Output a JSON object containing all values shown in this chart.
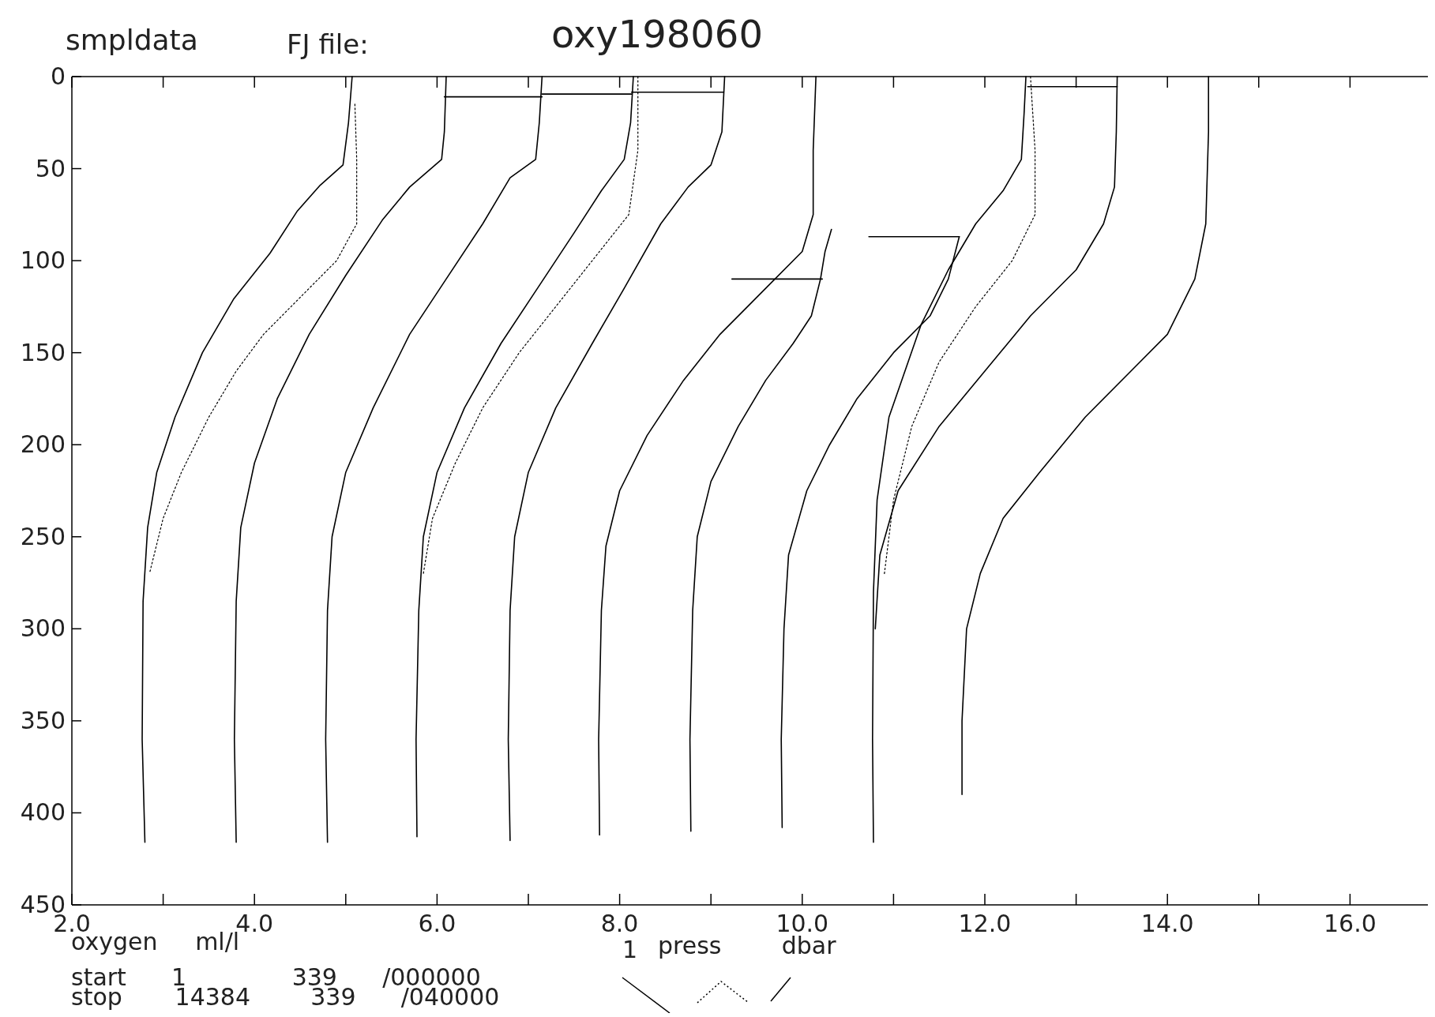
{
  "chart_data": {
    "type": "line",
    "title": "oxy198060",
    "xlabel": "oxygen     ml/l",
    "annotations": [
      "smpldata",
      "FJ file:",
      "start      1              339      /000000",
      "stop       14384        339      /040000",
      "1",
      "press        dbar"
    ],
    "xlim": [
      2,
      17
    ],
    "ylim": [
      450,
      0
    ],
    "xticks": [
      {
        "value": 2,
        "label": "2.0"
      },
      {
        "value": 3,
        "label": null
      },
      {
        "value": 4,
        "label": "4.0"
      },
      {
        "value": 5,
        "label": null
      },
      {
        "value": 6,
        "label": "6.0"
      },
      {
        "value": 7,
        "label": null
      },
      {
        "value": 8,
        "label": "8.0"
      },
      {
        "value": 9,
        "label": null
      },
      {
        "value": 10,
        "label": "10.0"
      },
      {
        "value": 11,
        "label": null
      },
      {
        "value": 12,
        "label": "12.0"
      },
      {
        "value": 13,
        "label": null
      },
      {
        "value": 14,
        "label": "14.0"
      },
      {
        "value": 15,
        "label": null
      },
      {
        "value": 16,
        "label": "16.0"
      }
    ],
    "yticks": [
      0,
      50,
      100,
      150,
      200,
      250,
      300,
      350,
      400,
      450
    ],
    "series": [
      {
        "color": "#000000",
        "line_style": "solid",
        "x": [
          5.07,
          5.03,
          4.97,
          4.72,
          4.47,
          4.17,
          3.77,
          3.43,
          3.13,
          2.93,
          2.83,
          2.78,
          2.77,
          2.8
        ],
        "values": [
          0,
          25,
          48,
          59,
          73,
          96,
          121,
          150,
          185,
          215,
          245,
          285,
          360,
          416
        ]
      },
      {
        "color": "#000000",
        "line_style": "solid",
        "x": [
          6.1,
          6.08,
          6.05,
          5.7,
          5.4,
          5.0,
          4.6,
          4.25,
          4.0,
          3.85,
          3.8,
          3.78,
          3.8
        ],
        "values": [
          0,
          30,
          45,
          60,
          78,
          108,
          140,
          175,
          210,
          245,
          285,
          360,
          416
        ]
      },
      {
        "color": "#000000",
        "line_style": "solid",
        "x": [
          7.15,
          7.12,
          7.08,
          6.8,
          6.5,
          6.1,
          5.7,
          5.3,
          5.0,
          4.85,
          4.8,
          4.78,
          4.8
        ],
        "values": [
          0,
          25,
          45,
          55,
          80,
          110,
          140,
          180,
          215,
          250,
          290,
          360,
          416
        ]
      },
      {
        "color": "#000000",
        "line_style": "solid",
        "x": [
          8.15,
          8.12,
          8.05,
          7.8,
          7.5,
          7.1,
          6.7,
          6.3,
          6.0,
          5.85,
          5.8,
          5.77,
          5.78
        ],
        "values": [
          0,
          25,
          45,
          62,
          85,
          115,
          145,
          180,
          215,
          250,
          290,
          360,
          413
        ]
      },
      {
        "color": "#000000",
        "line_style": "solid",
        "x": [
          9.15,
          9.12,
          9.0,
          8.75,
          8.45,
          8.05,
          7.7,
          7.3,
          7.0,
          6.85,
          6.8,
          6.78,
          6.8
        ],
        "values": [
          0,
          30,
          48,
          60,
          80,
          115,
          145,
          180,
          215,
          250,
          290,
          360,
          415
        ]
      },
      {
        "color": "#000000",
        "line_style": "solid",
        "x": [
          10.15,
          10.12,
          10.12,
          10.0,
          9.6,
          9.1,
          8.7,
          8.3,
          8.0,
          7.85,
          7.8,
          7.77,
          7.78
        ],
        "values": [
          0,
          40,
          75,
          95,
          115,
          140,
          165,
          195,
          225,
          255,
          290,
          360,
          412
        ]
      },
      {
        "color": "#000000",
        "line_style": "solid",
        "x": [
          10.32,
          10.25,
          10.2,
          10.1,
          9.9,
          9.6,
          9.3,
          9.0,
          8.85,
          8.8,
          8.77,
          8.78
        ],
        "values": [
          83,
          95,
          110,
          130,
          145,
          165,
          190,
          220,
          250,
          290,
          360,
          410
        ]
      },
      {
        "color": "#000000",
        "line_style": "solid",
        "x": [
          11.72,
          11.6,
          11.4,
          11.0,
          10.6,
          10.3,
          10.05,
          9.85,
          9.8,
          9.77,
          9.78
        ],
        "values": [
          87,
          110,
          130,
          150,
          175,
          200,
          225,
          260,
          300,
          360,
          408
        ]
      },
      {
        "color": "#000000",
        "line_style": "solid",
        "x": [
          12.45,
          12.43,
          12.4,
          12.2,
          11.9,
          11.6,
          11.3,
          10.95,
          10.82,
          10.78,
          10.77,
          10.78
        ],
        "values": [
          0,
          20,
          45,
          62,
          80,
          105,
          135,
          185,
          230,
          280,
          360,
          416
        ]
      },
      {
        "color": "#000000",
        "line_style": "solid",
        "x": [
          13.45,
          13.44,
          13.42,
          13.3,
          13.0,
          12.5,
          12.0,
          11.5,
          11.05,
          10.85,
          10.8
        ],
        "values": [
          0,
          30,
          60,
          80,
          105,
          130,
          160,
          190,
          225,
          260,
          300
        ]
      },
      {
        "color": "#000000",
        "line_style": "solid",
        "x": [
          14.45,
          14.45,
          14.42,
          14.3,
          14.0,
          13.6,
          13.1,
          12.6,
          12.2,
          11.95,
          11.8,
          11.75,
          11.75
        ],
        "values": [
          0,
          30,
          80,
          110,
          140,
          160,
          185,
          215,
          240,
          270,
          300,
          350,
          390
        ]
      },
      {
        "color": "#000000",
        "line_style": "dotted",
        "x": [
          5.1,
          5.12,
          5.12,
          4.9,
          4.5,
          4.1,
          3.8,
          3.5,
          3.2,
          3.0,
          2.85
        ],
        "values": [
          15,
          45,
          80,
          100,
          120,
          140,
          160,
          185,
          215,
          240,
          270
        ]
      },
      {
        "color": "#000000",
        "line_style": "dotted",
        "x": [
          8.2,
          8.2,
          8.1,
          7.7,
          7.3,
          6.9,
          6.5,
          6.2,
          5.95,
          5.85
        ],
        "values": [
          0,
          40,
          75,
          100,
          125,
          150,
          180,
          210,
          240,
          270
        ]
      },
      {
        "color": "#000000",
        "line_style": "dotted",
        "x": [
          12.5,
          12.55,
          12.55,
          12.3,
          11.9,
          11.5,
          11.2,
          11.0,
          10.9
        ],
        "values": [
          0,
          40,
          75,
          100,
          125,
          155,
          190,
          230,
          270
        ]
      },
      {
        "color": "#000000",
        "line_style": "solid",
        "x": [
          6.08,
          7.15
        ],
        "values": [
          11,
          11
        ]
      },
      {
        "color": "#000000",
        "line_style": "solid",
        "x": [
          7.15,
          8.13
        ],
        "values": [
          9.5,
          9.5
        ]
      },
      {
        "color": "#000000",
        "line_style": "solid",
        "x": [
          8.13,
          9.14
        ],
        "values": [
          8.5,
          8.5
        ]
      },
      {
        "color": "#000000",
        "line_style": "solid",
        "x": [
          9.23,
          10.22
        ],
        "values": [
          110,
          110
        ]
      },
      {
        "color": "#000000",
        "line_style": "solid",
        "x": [
          10.73,
          11.72
        ],
        "values": [
          87,
          87
        ]
      },
      {
        "color": "#000000",
        "line_style": "solid",
        "x": [
          12.47,
          13.45
        ],
        "values": [
          5.5,
          5.5
        ]
      }
    ]
  }
}
